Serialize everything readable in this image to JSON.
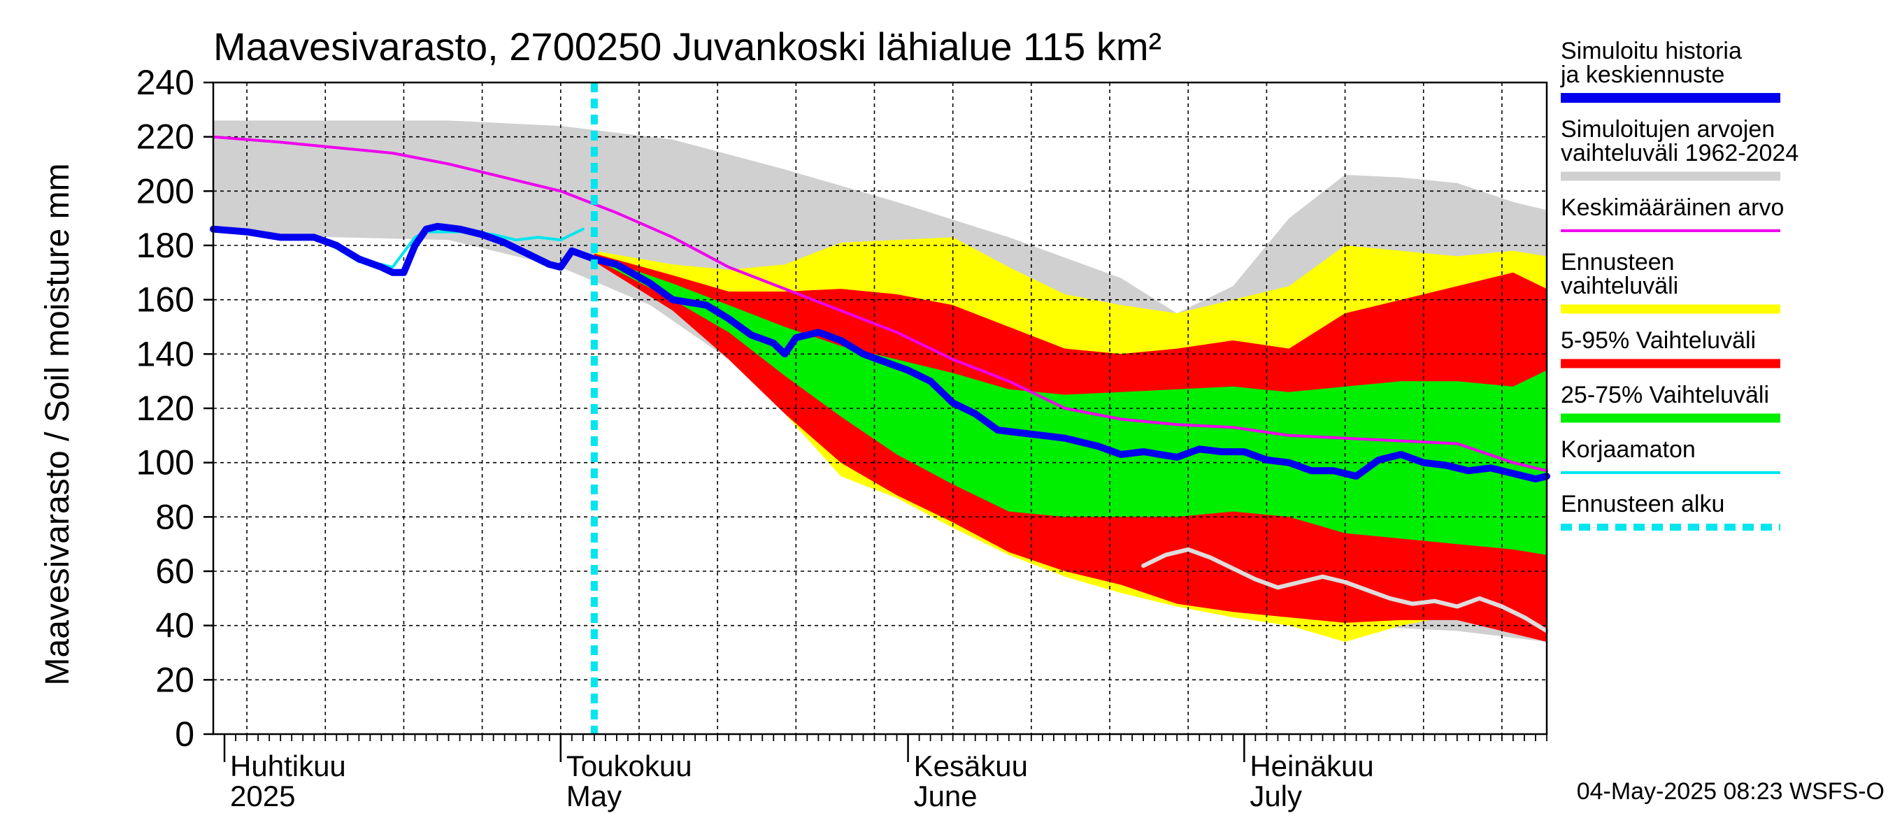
{
  "chart_data": {
    "type": "area",
    "title": "Maavesivarasto, 2700250 Juvankoski lähialue 115 km²",
    "ylabel": "Maavesivarasto / Soil moisture   mm",
    "ylim": [
      0,
      240
    ],
    "yticks": [
      0,
      20,
      40,
      60,
      80,
      100,
      120,
      140,
      160,
      180,
      200,
      220,
      240
    ],
    "x_domain_days": [
      -31,
      88
    ],
    "x_domain_note": "days relative to 1 May 2025",
    "forecast_start_day": 3,
    "months": [
      {
        "fi": "Huhtikuu",
        "en": "2025",
        "day": -30
      },
      {
        "fi": "Toukokuu",
        "en": "May",
        "day": 0
      },
      {
        "fi": "Kesäkuu",
        "en": "June",
        "day": 31
      },
      {
        "fi": "Heinäkuu",
        "en": "July",
        "day": 61
      }
    ],
    "colors": {
      "hist_band": "#d0d0d0",
      "ens_range": "#ffff00",
      "p5_95": "#ff0000",
      "p25_75": "#00ee00",
      "mean": "#ee00ee",
      "simulated": "#0000ee",
      "uncorrected": "#00e5ee",
      "forecast_start": "#00e5ee",
      "pale_trace": "#dddddd",
      "grid": "#000000"
    },
    "series": {
      "hist_upper": [
        [
          -31,
          226
        ],
        [
          -20,
          226
        ],
        [
          -10,
          226
        ],
        [
          0,
          224
        ],
        [
          10,
          219
        ],
        [
          20,
          208
        ],
        [
          30,
          196
        ],
        [
          40,
          183
        ],
        [
          50,
          168
        ],
        [
          55,
          155
        ],
        [
          60,
          165
        ],
        [
          65,
          190
        ],
        [
          70,
          206
        ],
        [
          75,
          205
        ],
        [
          80,
          203
        ],
        [
          85,
          196
        ],
        [
          88,
          193
        ]
      ],
      "hist_lower": [
        [
          -31,
          185
        ],
        [
          -20,
          183
        ],
        [
          -10,
          182
        ],
        [
          0,
          172
        ],
        [
          8,
          158
        ],
        [
          15,
          138
        ],
        [
          20,
          122
        ],
        [
          25,
          102
        ],
        [
          30,
          88
        ],
        [
          35,
          79
        ],
        [
          40,
          68
        ],
        [
          45,
          60
        ],
        [
          50,
          53
        ],
        [
          55,
          48
        ],
        [
          60,
          45
        ],
        [
          65,
          42
        ],
        [
          70,
          40
        ],
        [
          75,
          39
        ],
        [
          80,
          38
        ],
        [
          88,
          34
        ]
      ],
      "ens_upper": [
        [
          3,
          178
        ],
        [
          10,
          173
        ],
        [
          15,
          171
        ],
        [
          20,
          173
        ],
        [
          25,
          181
        ],
        [
          30,
          182
        ],
        [
          35,
          183
        ],
        [
          40,
          172
        ],
        [
          45,
          162
        ],
        [
          50,
          158
        ],
        [
          55,
          155
        ],
        [
          60,
          160
        ],
        [
          65,
          165
        ],
        [
          70,
          180
        ],
        [
          75,
          178
        ],
        [
          80,
          176
        ],
        [
          85,
          178
        ],
        [
          88,
          176
        ]
      ],
      "ens_lower": [
        [
          3,
          174
        ],
        [
          10,
          158
        ],
        [
          15,
          145
        ],
        [
          20,
          118
        ],
        [
          25,
          95
        ],
        [
          30,
          87
        ],
        [
          35,
          76
        ],
        [
          40,
          66
        ],
        [
          45,
          58
        ],
        [
          50,
          52
        ],
        [
          55,
          47
        ],
        [
          60,
          43
        ],
        [
          65,
          40
        ],
        [
          70,
          34
        ],
        [
          75,
          40
        ],
        [
          80,
          44
        ],
        [
          85,
          40
        ],
        [
          88,
          38
        ]
      ],
      "p95": [
        [
          3,
          177
        ],
        [
          10,
          169
        ],
        [
          15,
          163
        ],
        [
          20,
          163
        ],
        [
          25,
          164
        ],
        [
          30,
          162
        ],
        [
          35,
          158
        ],
        [
          40,
          150
        ],
        [
          45,
          142
        ],
        [
          50,
          140
        ],
        [
          55,
          142
        ],
        [
          60,
          145
        ],
        [
          65,
          142
        ],
        [
          70,
          155
        ],
        [
          75,
          160
        ],
        [
          80,
          165
        ],
        [
          85,
          170
        ],
        [
          88,
          164
        ]
      ],
      "p5": [
        [
          3,
          174
        ],
        [
          10,
          156
        ],
        [
          15,
          138
        ],
        [
          20,
          118
        ],
        [
          25,
          100
        ],
        [
          30,
          88
        ],
        [
          35,
          78
        ],
        [
          40,
          67
        ],
        [
          45,
          60
        ],
        [
          50,
          55
        ],
        [
          55,
          48
        ],
        [
          60,
          45
        ],
        [
          65,
          43
        ],
        [
          70,
          41
        ],
        [
          75,
          42
        ],
        [
          80,
          42
        ],
        [
          88,
          34
        ]
      ],
      "p75": [
        [
          3,
          176
        ],
        [
          10,
          166
        ],
        [
          15,
          158
        ],
        [
          20,
          150
        ],
        [
          25,
          143
        ],
        [
          30,
          138
        ],
        [
          35,
          133
        ],
        [
          40,
          127
        ],
        [
          45,
          125
        ],
        [
          50,
          126
        ],
        [
          55,
          127
        ],
        [
          60,
          128
        ],
        [
          65,
          126
        ],
        [
          70,
          128
        ],
        [
          75,
          130
        ],
        [
          80,
          130
        ],
        [
          85,
          128
        ],
        [
          88,
          134
        ]
      ],
      "p25": [
        [
          3,
          175
        ],
        [
          10,
          160
        ],
        [
          15,
          148
        ],
        [
          20,
          132
        ],
        [
          25,
          117
        ],
        [
          30,
          103
        ],
        [
          35,
          92
        ],
        [
          40,
          82
        ],
        [
          45,
          80
        ],
        [
          50,
          80
        ],
        [
          55,
          80
        ],
        [
          60,
          82
        ],
        [
          65,
          80
        ],
        [
          70,
          74
        ],
        [
          75,
          72
        ],
        [
          80,
          70
        ],
        [
          85,
          68
        ],
        [
          88,
          66
        ]
      ],
      "mean": [
        [
          -31,
          220
        ],
        [
          -25,
          218
        ],
        [
          -20,
          216
        ],
        [
          -15,
          214
        ],
        [
          -10,
          210
        ],
        [
          -5,
          205
        ],
        [
          0,
          200
        ],
        [
          5,
          192
        ],
        [
          10,
          183
        ],
        [
          15,
          172
        ],
        [
          20,
          164
        ],
        [
          25,
          156
        ],
        [
          30,
          148
        ],
        [
          35,
          138
        ],
        [
          40,
          130
        ],
        [
          45,
          120
        ],
        [
          50,
          116
        ],
        [
          55,
          114
        ],
        [
          60,
          113
        ],
        [
          65,
          110
        ],
        [
          70,
          109
        ],
        [
          75,
          108
        ],
        [
          80,
          107
        ],
        [
          85,
          100
        ],
        [
          88,
          97
        ]
      ],
      "simulated": [
        [
          -31,
          186
        ],
        [
          -28,
          185
        ],
        [
          -25,
          183
        ],
        [
          -22,
          183
        ],
        [
          -20,
          180
        ],
        [
          -18,
          175
        ],
        [
          -16,
          172
        ],
        [
          -15,
          170
        ],
        [
          -14,
          170
        ],
        [
          -13,
          180
        ],
        [
          -12,
          186
        ],
        [
          -11,
          187
        ],
        [
          -9,
          186
        ],
        [
          -7,
          184
        ],
        [
          -5,
          181
        ],
        [
          -3,
          177
        ],
        [
          -1,
          173
        ],
        [
          0,
          172
        ],
        [
          1,
          178
        ],
        [
          3,
          175
        ],
        [
          5,
          173
        ],
        [
          8,
          166
        ],
        [
          10,
          160
        ],
        [
          13,
          158
        ],
        [
          15,
          153
        ],
        [
          17,
          147
        ],
        [
          19,
          144
        ],
        [
          20,
          140
        ],
        [
          21,
          146
        ],
        [
          23,
          148
        ],
        [
          25,
          145
        ],
        [
          27,
          140
        ],
        [
          29,
          137
        ],
        [
          31,
          134
        ],
        [
          33,
          130
        ],
        [
          35,
          122
        ],
        [
          37,
          118
        ],
        [
          39,
          112
        ],
        [
          41,
          111
        ],
        [
          43,
          110
        ],
        [
          45,
          109
        ],
        [
          48,
          106
        ],
        [
          50,
          103
        ],
        [
          52,
          104
        ],
        [
          55,
          102
        ],
        [
          57,
          105
        ],
        [
          59,
          104
        ],
        [
          61,
          104
        ],
        [
          63,
          101
        ],
        [
          65,
          100
        ],
        [
          67,
          97
        ],
        [
          69,
          97
        ],
        [
          71,
          95
        ],
        [
          73,
          101
        ],
        [
          75,
          103
        ],
        [
          77,
          100
        ],
        [
          79,
          99
        ],
        [
          81,
          97
        ],
        [
          83,
          98
        ],
        [
          85,
          96
        ],
        [
          87,
          94
        ],
        [
          88,
          95
        ]
      ],
      "uncorrected": [
        [
          -31,
          186
        ],
        [
          -28,
          185
        ],
        [
          -25,
          183
        ],
        [
          -22,
          183
        ],
        [
          -20,
          179
        ],
        [
          -18,
          174
        ],
        [
          -16,
          173
        ],
        [
          -15,
          172
        ],
        [
          -13,
          183
        ],
        [
          -12,
          185
        ],
        [
          -10,
          185
        ],
        [
          -8,
          185
        ],
        [
          -6,
          184
        ],
        [
          -4,
          182
        ],
        [
          -2,
          183
        ],
        [
          0,
          182
        ],
        [
          2,
          186
        ]
      ],
      "pale_trace": [
        [
          52,
          62
        ],
        [
          54,
          66
        ],
        [
          56,
          68
        ],
        [
          58,
          65
        ],
        [
          60,
          61
        ],
        [
          62,
          57
        ],
        [
          64,
          54
        ],
        [
          66,
          56
        ],
        [
          68,
          58
        ],
        [
          70,
          56
        ],
        [
          72,
          53
        ],
        [
          74,
          50
        ],
        [
          76,
          48
        ],
        [
          78,
          49
        ],
        [
          80,
          47
        ],
        [
          82,
          50
        ],
        [
          84,
          47
        ],
        [
          86,
          43
        ],
        [
          88,
          38
        ]
      ]
    }
  },
  "legend": [
    {
      "label": "Simuloitu historia ja keskiennuste",
      "kind": "thick-line",
      "color": "#0000ee"
    },
    {
      "label": "Simuloitujen arvojen vaihteluväli 1962-2024",
      "kind": "band",
      "color": "#d0d0d0"
    },
    {
      "label": "Keskimääräinen arvo",
      "kind": "thin-line",
      "color": "#ee00ee"
    },
    {
      "label": "Ennusteen vaihteluväli",
      "kind": "band",
      "color": "#ffff00"
    },
    {
      "label": "5-95% Vaihteluväli",
      "kind": "band",
      "color": "#ff0000"
    },
    {
      "label": "25-75% Vaihteluväli",
      "kind": "band",
      "color": "#00ee00"
    },
    {
      "label": "Korjaamaton",
      "kind": "thin-line",
      "color": "#00e5ee"
    },
    {
      "label": "Ennusteen alku",
      "kind": "dashed",
      "color": "#00e5ee"
    }
  ],
  "timestamp": "04-May-2025 08:23 WSFS-O"
}
